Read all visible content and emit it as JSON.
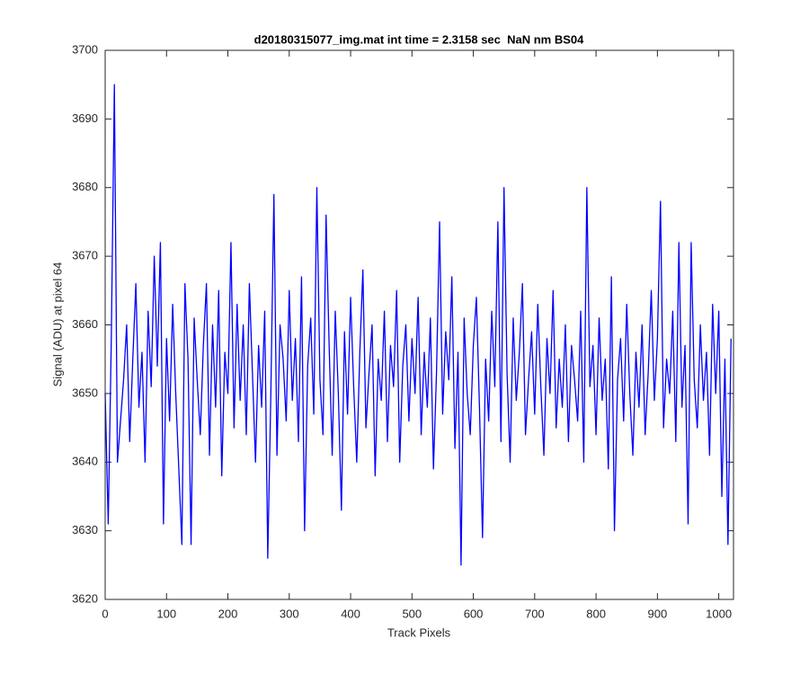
{
  "chart_data": {
    "type": "line",
    "title": "d20180315077_img.mat int time = 2.3158 sec  NaN nm BS04",
    "xlabel": "Track Pixels",
    "ylabel": "Signal (ADU) at pixel 64",
    "color": "#0000ff",
    "xlim": [
      0,
      1024
    ],
    "ylim": [
      3620,
      3700
    ],
    "xticks": [
      0,
      100,
      200,
      300,
      400,
      500,
      600,
      700,
      800,
      900,
      1000
    ],
    "yticks": [
      3620,
      3630,
      3640,
      3650,
      3660,
      3670,
      3680,
      3690,
      3700
    ],
    "x": [
      0,
      5,
      10,
      15,
      20,
      25,
      30,
      35,
      40,
      45,
      50,
      55,
      60,
      65,
      70,
      75,
      80,
      85,
      90,
      95,
      100,
      105,
      110,
      115,
      120,
      125,
      130,
      135,
      140,
      145,
      150,
      155,
      160,
      165,
      170,
      175,
      180,
      185,
      190,
      195,
      200,
      205,
      210,
      215,
      220,
      225,
      230,
      235,
      240,
      245,
      250,
      255,
      260,
      265,
      270,
      275,
      280,
      285,
      290,
      295,
      300,
      305,
      310,
      315,
      320,
      325,
      330,
      335,
      340,
      345,
      350,
      355,
      360,
      365,
      370,
      375,
      380,
      385,
      390,
      395,
      400,
      405,
      410,
      415,
      420,
      425,
      430,
      435,
      440,
      445,
      450,
      455,
      460,
      465,
      470,
      475,
      480,
      485,
      490,
      495,
      500,
      505,
      510,
      515,
      520,
      525,
      530,
      535,
      540,
      545,
      550,
      555,
      560,
      565,
      570,
      575,
      580,
      585,
      590,
      595,
      600,
      605,
      610,
      615,
      620,
      625,
      630,
      635,
      640,
      645,
      650,
      655,
      660,
      665,
      670,
      675,
      680,
      685,
      690,
      695,
      700,
      705,
      710,
      715,
      720,
      725,
      730,
      735,
      740,
      745,
      750,
      755,
      760,
      765,
      770,
      775,
      780,
      785,
      790,
      795,
      800,
      805,
      810,
      815,
      820,
      825,
      830,
      835,
      840,
      845,
      850,
      855,
      860,
      865,
      870,
      875,
      880,
      885,
      890,
      895,
      900,
      905,
      910,
      915,
      920,
      925,
      930,
      935,
      940,
      945,
      950,
      955,
      960,
      965,
      970,
      975,
      980,
      985,
      990,
      995,
      1000,
      1005,
      1010,
      1015,
      1020
    ],
    "values": [
      3650,
      3631,
      3658,
      3695,
      3640,
      3646,
      3652,
      3660,
      3643,
      3655,
      3666,
      3648,
      3656,
      3640,
      3662,
      3651,
      3670,
      3654,
      3672,
      3631,
      3658,
      3646,
      3663,
      3650,
      3639,
      3628,
      3666,
      3655,
      3628,
      3661,
      3652,
      3644,
      3657,
      3666,
      3641,
      3660,
      3648,
      3665,
      3638,
      3656,
      3650,
      3672,
      3645,
      3663,
      3649,
      3660,
      3644,
      3666,
      3653,
      3640,
      3657,
      3648,
      3662,
      3626,
      3650,
      3679,
      3641,
      3660,
      3655,
      3646,
      3665,
      3649,
      3658,
      3643,
      3667,
      3630,
      3654,
      3661,
      3647,
      3680,
      3652,
      3644,
      3676,
      3657,
      3641,
      3662,
      3650,
      3633,
      3659,
      3647,
      3664,
      3651,
      3640,
      3656,
      3668,
      3645,
      3653,
      3660,
      3638,
      3655,
      3649,
      3662,
      3643,
      3657,
      3651,
      3665,
      3640,
      3654,
      3660,
      3646,
      3658,
      3650,
      3664,
      3644,
      3656,
      3648,
      3661,
      3639,
      3653,
      3675,
      3647,
      3659,
      3652,
      3667,
      3642,
      3656,
      3625,
      3661,
      3650,
      3644,
      3657,
      3664,
      3648,
      3629,
      3655,
      3646,
      3662,
      3651,
      3675,
      3643,
      3680,
      3653,
      3640,
      3661,
      3649,
      3656,
      3666,
      3644,
      3652,
      3659,
      3647,
      3663,
      3651,
      3641,
      3658,
      3650,
      3665,
      3645,
      3655,
      3648,
      3660,
      3643,
      3657,
      3652,
      3646,
      3662,
      3640,
      3680,
      3651,
      3657,
      3644,
      3661,
      3649,
      3655,
      3639,
      3667,
      3630,
      3652,
      3658,
      3646,
      3663,
      3650,
      3641,
      3656,
      3648,
      3660,
      3644,
      3653,
      3665,
      3649,
      3658,
      3678,
      3645,
      3655,
      3650,
      3662,
      3643,
      3672,
      3648,
      3657,
      3631,
      3672,
      3652,
      3645,
      3660,
      3649,
      3656,
      3641,
      3663,
      3650,
      3662,
      3635,
      3655,
      3628,
      3658
    ]
  }
}
